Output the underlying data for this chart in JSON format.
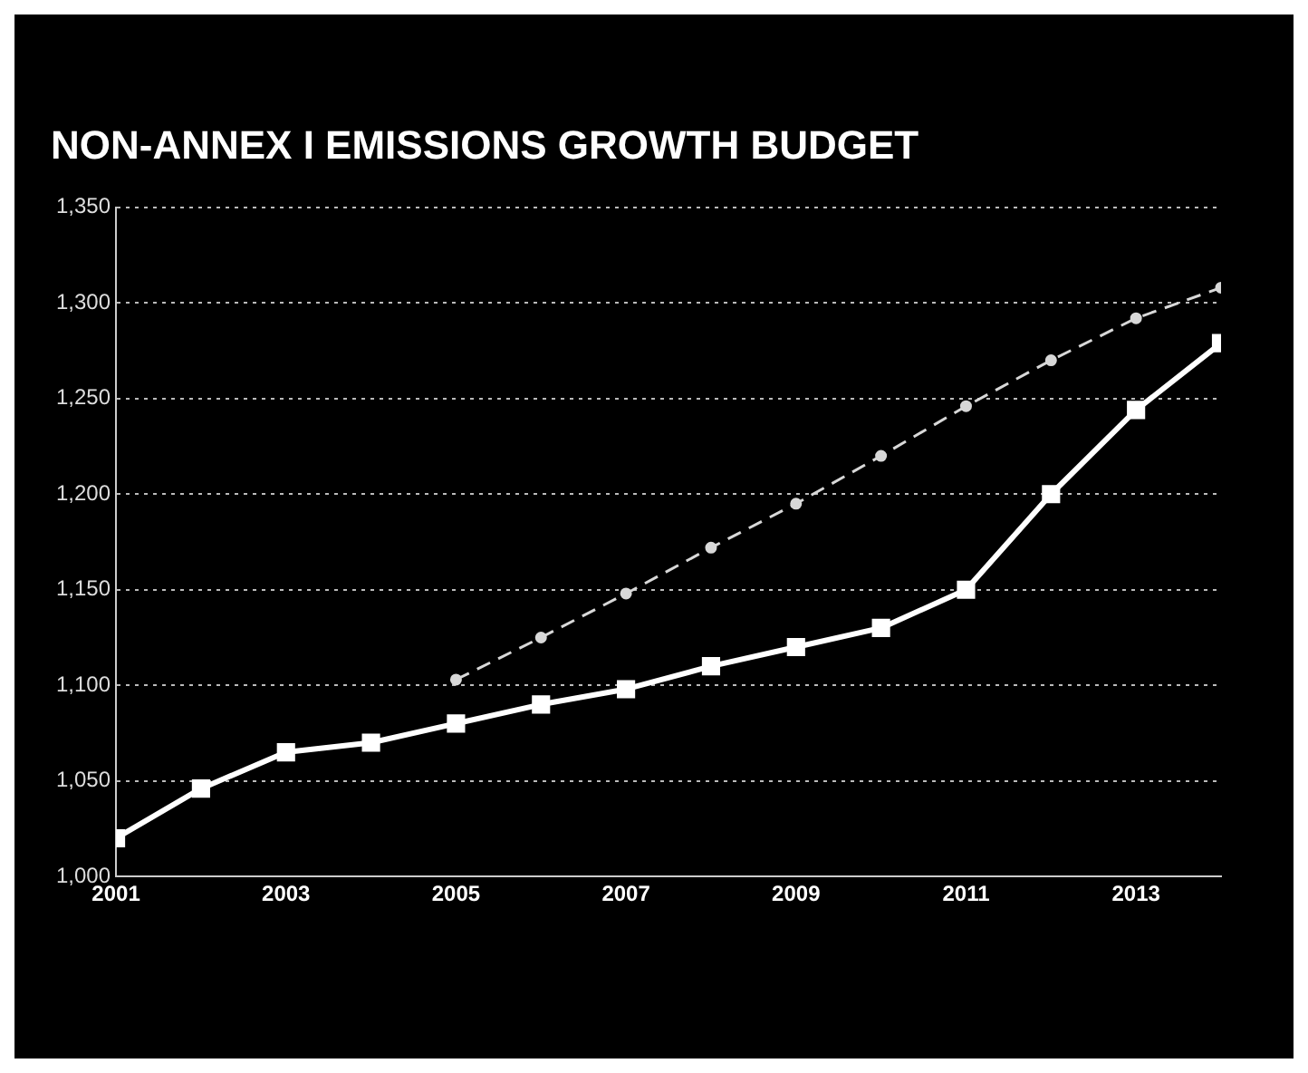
{
  "chart_data": {
    "type": "line",
    "title": "NON-ANNEX I EMISSIONS GROWTH BUDGET",
    "x": [
      2001,
      2002,
      2003,
      2004,
      2005,
      2006,
      2007,
      2008,
      2009,
      2010,
      2011,
      2012,
      2013,
      2014
    ],
    "series": [
      {
        "color": "#ffffff",
        "marker": "square",
        "line_style": "solid",
        "values": [
          1020,
          1046,
          1065,
          1070,
          1080,
          1090,
          1098,
          1110,
          1120,
          1130,
          1150,
          1200,
          1244,
          1279
        ]
      },
      {
        "color": "#d8d8d8",
        "marker": "circle",
        "line_style": "dashed",
        "values": [
          null,
          null,
          null,
          null,
          1103,
          1125,
          1148,
          1172,
          1195,
          1220,
          1246,
          1270,
          1292,
          1308
        ]
      }
    ],
    "xlim": [
      2001,
      2014
    ],
    "xticks": [
      2001,
      2003,
      2005,
      2007,
      2009,
      2011,
      2013
    ],
    "ylim": [
      1000,
      1350
    ],
    "yticks": [
      {
        "value": 1000,
        "label": "1,000"
      },
      {
        "value": 1050,
        "label": "1,050"
      },
      {
        "value": 1100,
        "label": "1,100"
      },
      {
        "value": 1150,
        "label": "1,150"
      },
      {
        "value": 1200,
        "label": "1,200"
      },
      {
        "value": 1250,
        "label": "1,250"
      },
      {
        "value": 1300,
        "label": "1,300"
      },
      {
        "value": 1350,
        "label": "1,350"
      }
    ],
    "grid": "y",
    "legend": false
  }
}
